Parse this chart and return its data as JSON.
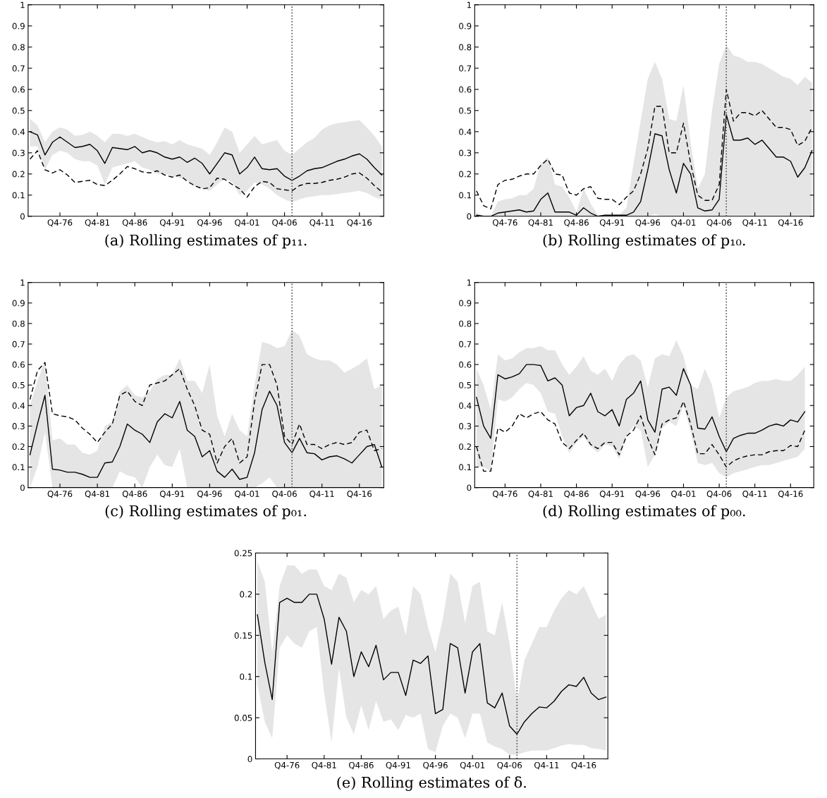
{
  "chart_data": [
    {
      "type": "line",
      "title": "(a) Rolling estimates of p₁₁.",
      "categories": [
        null,
        null,
        null,
        null,
        "Q4-76",
        null,
        null,
        null,
        null,
        "Q4-81",
        null,
        null,
        null,
        null,
        "Q4-86",
        null,
        null,
        null,
        null,
        "Q4-91",
        null,
        null,
        null,
        null,
        "Q4-96",
        null,
        null,
        null,
        null,
        "Q4-01",
        null,
        null,
        null,
        null,
        "Q4-06",
        null,
        null,
        null,
        null,
        "Q4-11",
        null,
        null,
        null,
        null,
        "Q4-16",
        null,
        null,
        null
      ],
      "series": [
        {
          "color": "#000000",
          "line_style": "solid",
          "values": [
            0.4,
            0.385,
            0.29,
            0.35,
            0.375,
            0.35,
            0.325,
            0.33,
            0.34,
            0.31,
            0.25,
            0.325,
            0.32,
            0.315,
            0.33,
            0.3,
            0.31,
            0.3,
            0.28,
            0.27,
            0.28,
            0.255,
            0.275,
            0.25,
            0.2,
            0.25,
            0.3,
            0.29,
            0.2,
            0.23,
            0.28,
            0.225,
            0.22,
            0.225,
            0.19,
            0.17,
            0.19,
            0.215,
            0.225,
            0.23,
            0.245,
            0.26,
            0.27,
            0.285,
            0.295,
            0.27,
            0.23,
            0.195
          ],
          "upper": [
            0.46,
            0.43,
            0.35,
            0.4,
            0.42,
            0.41,
            0.38,
            0.385,
            0.4,
            0.38,
            0.35,
            0.39,
            0.39,
            0.38,
            0.39,
            0.375,
            0.36,
            0.35,
            0.355,
            0.34,
            0.36,
            0.34,
            0.33,
            0.32,
            0.29,
            0.35,
            0.42,
            0.4,
            0.3,
            0.34,
            0.38,
            0.34,
            0.35,
            0.36,
            0.31,
            0.29,
            0.32,
            0.35,
            0.37,
            0.41,
            0.43,
            0.44,
            0.445,
            0.45,
            0.455,
            0.42,
            0.38,
            0.33
          ],
          "lower": [
            0.33,
            0.33,
            0.22,
            0.29,
            0.31,
            0.3,
            0.27,
            0.26,
            0.26,
            0.24,
            0.15,
            0.23,
            0.24,
            0.25,
            0.26,
            0.23,
            0.22,
            0.2,
            0.2,
            0.19,
            0.18,
            0.17,
            0.14,
            0.13,
            0.12,
            0.15,
            0.18,
            0.16,
            0.1,
            0.12,
            0.16,
            0.15,
            0.13,
            0.1,
            0.08,
            0.065,
            0.08,
            0.09,
            0.095,
            0.1,
            0.1,
            0.105,
            0.11,
            0.115,
            0.12,
            0.11,
            0.09,
            0.08
          ]
        },
        {
          "color": "#000000",
          "line_style": "dashed",
          "values": [
            0.27,
            0.31,
            0.22,
            0.205,
            0.22,
            0.195,
            0.16,
            0.165,
            0.17,
            0.15,
            0.145,
            0.17,
            0.2,
            0.235,
            0.225,
            0.21,
            0.205,
            0.215,
            0.195,
            0.185,
            0.195,
            0.165,
            0.145,
            0.13,
            0.135,
            0.18,
            0.175,
            0.15,
            0.13,
            0.09,
            0.14,
            0.165,
            0.16,
            0.13,
            0.125,
            0.12,
            0.145,
            0.155,
            0.155,
            0.16,
            0.17,
            0.175,
            0.185,
            0.2,
            0.205,
            0.18,
            0.145,
            0.115
          ]
        }
      ],
      "ylim": [
        0,
        1
      ],
      "yticks": [
        0,
        0.1,
        0.2,
        0.3,
        0.4,
        0.5,
        0.6,
        0.7,
        0.8,
        0.9,
        1
      ]
    },
    {
      "type": "line",
      "title": "(b) Rolling estimates of p₁₀.",
      "categories": [
        null,
        null,
        null,
        null,
        "Q4-76",
        null,
        null,
        null,
        null,
        "Q4-81",
        null,
        null,
        null,
        null,
        "Q4-86",
        null,
        null,
        null,
        null,
        "Q4-91",
        null,
        null,
        null,
        null,
        "Q4-96",
        null,
        null,
        null,
        null,
        "Q4-01",
        null,
        null,
        null,
        null,
        "Q4-06",
        null,
        null,
        null,
        null,
        "Q4-11",
        null,
        null,
        null,
        null,
        "Q4-16",
        null,
        null,
        null
      ],
      "series": [
        {
          "color": "#000000",
          "line_style": "solid",
          "values": [
            0.005,
            0,
            0,
            0.015,
            0.02,
            0.025,
            0.03,
            0.02,
            0.025,
            0.08,
            0.11,
            0.02,
            0.02,
            0.02,
            0.005,
            0.04,
            0.015,
            0,
            0.005,
            0.005,
            0.005,
            0.005,
            0.02,
            0.07,
            0.22,
            0.39,
            0.38,
            0.22,
            0.11,
            0.25,
            0.2,
            0.04,
            0.025,
            0.03,
            0.08,
            0.48,
            0.36,
            0.36,
            0.37,
            0.34,
            0.36,
            0.32,
            0.28,
            0.28,
            0.26,
            0.185,
            0.23,
            0.31
          ],
          "upper": [
            0.02,
            0,
            0,
            0.07,
            0.08,
            0.085,
            0.1,
            0.1,
            0.13,
            0.25,
            0.28,
            0.15,
            0.14,
            0.09,
            0.02,
            0.13,
            0.06,
            0.005,
            0.005,
            0.005,
            0.005,
            0.04,
            0.25,
            0.45,
            0.65,
            0.73,
            0.65,
            0.46,
            0.45,
            0.62,
            0.35,
            0.13,
            0.2,
            0.5,
            0.72,
            0.81,
            0.76,
            0.75,
            0.73,
            0.73,
            0.72,
            0.7,
            0.68,
            0.66,
            0.65,
            0.62,
            0.66,
            0.63
          ],
          "lower": [
            0,
            0,
            0,
            0,
            0,
            0,
            0,
            0,
            0,
            0,
            0,
            0,
            0,
            0,
            0,
            0,
            0,
            0,
            0,
            0,
            0,
            0,
            0,
            0,
            0,
            0.01,
            0,
            0,
            0,
            0,
            0,
            0,
            0,
            0,
            0,
            0,
            0,
            0,
            0,
            0,
            0,
            0,
            0,
            0,
            0,
            0,
            0,
            0
          ]
        },
        {
          "color": "#000000",
          "line_style": "dashed",
          "values": [
            0.12,
            0.05,
            0.035,
            0.15,
            0.17,
            0.175,
            0.19,
            0.2,
            0.2,
            0.24,
            0.27,
            0.2,
            0.195,
            0.11,
            0.1,
            0.13,
            0.14,
            0.085,
            0.08,
            0.08,
            0.055,
            0.09,
            0.12,
            0.2,
            0.32,
            0.52,
            0.52,
            0.3,
            0.3,
            0.44,
            0.25,
            0.1,
            0.075,
            0.075,
            0.15,
            0.6,
            0.45,
            0.49,
            0.49,
            0.475,
            0.5,
            0.46,
            0.42,
            0.42,
            0.41,
            0.335,
            0.355,
            0.42
          ]
        }
      ],
      "ylim": [
        0,
        1
      ],
      "yticks": [
        0,
        0.1,
        0.2,
        0.3,
        0.4,
        0.5,
        0.6,
        0.7,
        0.8,
        0.9,
        1
      ]
    },
    {
      "type": "line",
      "title": "(c) Rolling estimates of p₀₁.",
      "categories": [
        null,
        null,
        null,
        null,
        "Q4-76",
        null,
        null,
        null,
        null,
        "Q4-81",
        null,
        null,
        null,
        null,
        "Q4-86",
        null,
        null,
        null,
        null,
        "Q4-91",
        null,
        null,
        null,
        null,
        "Q4-96",
        null,
        null,
        null,
        null,
        "Q4-01",
        null,
        null,
        null,
        null,
        "Q4-06",
        null,
        null,
        null,
        null,
        "Q4-11",
        null,
        null,
        null,
        null,
        "Q4-16",
        null,
        null,
        null
      ],
      "series": [
        {
          "color": "#000000",
          "line_style": "solid",
          "values": [
            0.16,
            0.31,
            0.45,
            0.09,
            0.085,
            0.075,
            0.075,
            0.065,
            0.05,
            0.05,
            0.12,
            0.125,
            0.2,
            0.31,
            0.28,
            0.26,
            0.22,
            0.32,
            0.36,
            0.34,
            0.42,
            0.28,
            0.25,
            0.15,
            0.18,
            0.08,
            0.05,
            0.09,
            0.04,
            0.05,
            0.17,
            0.38,
            0.47,
            0.4,
            0.22,
            0.17,
            0.24,
            0.17,
            0.165,
            0.135,
            0.15,
            0.155,
            0.14,
            0.12,
            0.16,
            0.2,
            0.21,
            0.1
          ],
          "upper": [
            0.4,
            0.52,
            0.62,
            0.23,
            0.24,
            0.21,
            0.21,
            0.17,
            0.16,
            0.18,
            0.3,
            0.32,
            0.47,
            0.5,
            0.45,
            0.44,
            0.47,
            0.53,
            0.55,
            0.55,
            0.63,
            0.52,
            0.52,
            0.46,
            0.6,
            0.35,
            0.25,
            0.36,
            0.28,
            0.25,
            0.5,
            0.71,
            0.7,
            0.68,
            0.69,
            0.77,
            0.74,
            0.65,
            0.63,
            0.62,
            0.62,
            0.6,
            0.56,
            0.58,
            0.6,
            0.63,
            0.48,
            0.5
          ],
          "lower": [
            0,
            0.1,
            0.27,
            0,
            0,
            0,
            0,
            0,
            0,
            0,
            0,
            0,
            0.08,
            0.06,
            0.05,
            0,
            0.1,
            0.16,
            0.11,
            0.1,
            0.19,
            0,
            0,
            0,
            0,
            0,
            0,
            0,
            0,
            0,
            0,
            0.02,
            0.05,
            0,
            0,
            0,
            0,
            0,
            0,
            0,
            0,
            0,
            0,
            0,
            0,
            0,
            0,
            0
          ]
        },
        {
          "color": "#000000",
          "line_style": "dashed",
          "values": [
            0.43,
            0.57,
            0.61,
            0.36,
            0.35,
            0.345,
            0.33,
            0.29,
            0.26,
            0.22,
            0.27,
            0.31,
            0.45,
            0.47,
            0.42,
            0.4,
            0.5,
            0.51,
            0.52,
            0.55,
            0.58,
            0.48,
            0.4,
            0.28,
            0.26,
            0.12,
            0.2,
            0.24,
            0.12,
            0.15,
            0.42,
            0.6,
            0.6,
            0.5,
            0.25,
            0.21,
            0.31,
            0.21,
            0.21,
            0.19,
            0.21,
            0.22,
            0.21,
            0.22,
            0.27,
            0.28,
            0.18,
            0.19
          ]
        }
      ],
      "ylim": [
        0,
        1
      ],
      "yticks": [
        0,
        0.1,
        0.2,
        0.3,
        0.4,
        0.5,
        0.6,
        0.7,
        0.8,
        0.9,
        1
      ]
    },
    {
      "type": "line",
      "title": "(d) Rolling estimates of p₀₀.",
      "categories": [
        null,
        null,
        null,
        null,
        "Q4-76",
        null,
        null,
        null,
        null,
        "Q4-81",
        null,
        null,
        null,
        null,
        "Q4-86",
        null,
        null,
        null,
        null,
        "Q4-91",
        null,
        null,
        null,
        null,
        "Q4-96",
        null,
        null,
        null,
        null,
        "Q4-01",
        null,
        null,
        null,
        null,
        "Q4-06",
        null,
        null,
        null,
        null,
        "Q4-11",
        null,
        null,
        null,
        null,
        "Q4-16",
        null,
        null,
        null
      ],
      "series": [
        {
          "color": "#000000",
          "line_style": "solid",
          "values": [
            0.44,
            0.3,
            0.24,
            0.55,
            0.53,
            0.54,
            0.555,
            0.6,
            0.6,
            0.595,
            0.52,
            0.535,
            0.5,
            0.35,
            0.39,
            0.4,
            0.46,
            0.37,
            0.35,
            0.38,
            0.3,
            0.43,
            0.46,
            0.52,
            0.33,
            0.27,
            0.48,
            0.49,
            0.45,
            0.58,
            0.5,
            0.29,
            0.285,
            0.345,
            0.25,
            0.175,
            0.24,
            0.255,
            0.265,
            0.265,
            0.28,
            0.3,
            0.31,
            0.3,
            0.33,
            0.32,
            0.37,
            null
          ],
          "upper": [
            0.58,
            0.5,
            0.38,
            0.65,
            0.62,
            0.63,
            0.66,
            0.68,
            0.68,
            0.69,
            0.67,
            0.67,
            0.6,
            0.55,
            0.59,
            0.64,
            0.57,
            0.55,
            0.58,
            0.52,
            0.6,
            0.64,
            0.65,
            0.62,
            0.49,
            0.63,
            0.65,
            0.64,
            0.72,
            0.64,
            0.5,
            0.48,
            0.58,
            0.5,
            0.34,
            0.44,
            0.47,
            0.48,
            0.49,
            0.51,
            0.52,
            0.52,
            0.53,
            0.52,
            0.52,
            0.55,
            0.59,
            null
          ],
          "lower": [
            0.1,
            0.1,
            0.08,
            0.43,
            0.42,
            0.44,
            0.48,
            0.51,
            0.5,
            0.46,
            0.37,
            0.36,
            0.25,
            0.17,
            0.22,
            0.25,
            0.2,
            0.17,
            0.21,
            0.2,
            0.14,
            0.25,
            0.3,
            0.28,
            0.1,
            0.16,
            0.29,
            0.32,
            0.3,
            0.4,
            0.27,
            0.12,
            0.11,
            0.12,
            0.07,
            0.05,
            0.07,
            0.08,
            0.09,
            0.1,
            0.11,
            0.11,
            0.12,
            0.13,
            0.14,
            0.15,
            0.19,
            null
          ]
        },
        {
          "color": "#000000",
          "line_style": "dashed",
          "values": [
            0.2,
            0.08,
            0.08,
            0.29,
            0.27,
            0.3,
            0.36,
            0.34,
            0.36,
            0.37,
            0.33,
            0.31,
            0.22,
            0.19,
            0.23,
            0.265,
            0.21,
            0.19,
            0.22,
            0.22,
            0.16,
            0.25,
            0.28,
            0.35,
            0.24,
            0.16,
            0.31,
            0.33,
            0.34,
            0.42,
            0.31,
            0.165,
            0.165,
            0.21,
            0.16,
            0.1,
            0.13,
            0.145,
            0.155,
            0.16,
            0.16,
            0.175,
            0.18,
            0.18,
            0.205,
            0.2,
            0.28,
            null
          ]
        }
      ],
      "ylim": [
        0,
        1
      ],
      "yticks": [
        0,
        0.1,
        0.2,
        0.3,
        0.4,
        0.5,
        0.6,
        0.7,
        0.8,
        0.9,
        1
      ]
    },
    {
      "type": "line",
      "title": "(e) Rolling estimates of δ.",
      "categories": [
        null,
        null,
        null,
        null,
        "Q4-76",
        null,
        null,
        null,
        null,
        "Q4-81",
        null,
        null,
        null,
        null,
        "Q4-86",
        null,
        null,
        null,
        null,
        "Q4-91",
        null,
        null,
        null,
        null,
        "Q4-96",
        null,
        null,
        null,
        null,
        "Q4-01",
        null,
        null,
        null,
        null,
        "Q4-06",
        null,
        null,
        null,
        null,
        "Q4-11",
        null,
        null,
        null,
        null,
        "Q4-16",
        null,
        null,
        null
      ],
      "series": [
        {
          "color": "#000000",
          "line_style": "solid",
          "values": [
            0.175,
            0.117,
            0.072,
            0.19,
            0.195,
            0.19,
            0.19,
            0.2,
            0.2,
            0.17,
            0.115,
            0.172,
            0.155,
            0.1,
            0.13,
            0.112,
            0.138,
            0.096,
            0.105,
            0.105,
            0.077,
            0.12,
            0.116,
            0.125,
            0.055,
            0.06,
            0.14,
            0.135,
            0.08,
            0.13,
            0.14,
            0.068,
            0.062,
            0.08,
            0.04,
            0.03,
            0.045,
            0.055,
            0.063,
            0.062,
            0.07,
            0.082,
            0.09,
            0.088,
            0.099,
            0.08,
            0.072,
            0.075
          ],
          "upper": [
            0.24,
            0.215,
            0.13,
            0.21,
            0.235,
            0.235,
            0.225,
            0.23,
            0.23,
            0.21,
            0.205,
            0.225,
            0.22,
            0.19,
            0.205,
            0.2,
            0.21,
            0.17,
            0.18,
            0.185,
            0.15,
            0.21,
            0.2,
            0.16,
            0.13,
            0.17,
            0.225,
            0.215,
            0.165,
            0.21,
            0.215,
            0.155,
            0.15,
            0.19,
            0.14,
            0.07,
            0.12,
            0.14,
            0.16,
            0.16,
            0.18,
            0.195,
            0.205,
            0.2,
            0.21,
            0.19,
            0.17,
            0.175
          ],
          "lower": [
            0.09,
            0.045,
            0.025,
            0.135,
            0.15,
            0.14,
            0.135,
            0.155,
            0.16,
            0.08,
            0.02,
            0.11,
            0.05,
            0.03,
            0.065,
            0.035,
            0.07,
            0.045,
            0.048,
            0.035,
            0.053,
            0.05,
            0.055,
            0.012,
            0.008,
            0.04,
            0.055,
            0.05,
            0.025,
            0.055,
            0.055,
            0.02,
            0.015,
            0.012,
            0.005,
            0.005,
            0.008,
            0.01,
            0.01,
            0.01,
            0.013,
            0.016,
            0.018,
            0.017,
            0.017,
            0.013,
            0.012,
            0.01
          ]
        }
      ],
      "ylim": [
        0,
        0.25
      ],
      "yticks": [
        0,
        0.05,
        0.1,
        0.15,
        0.2,
        0.25
      ]
    }
  ]
}
